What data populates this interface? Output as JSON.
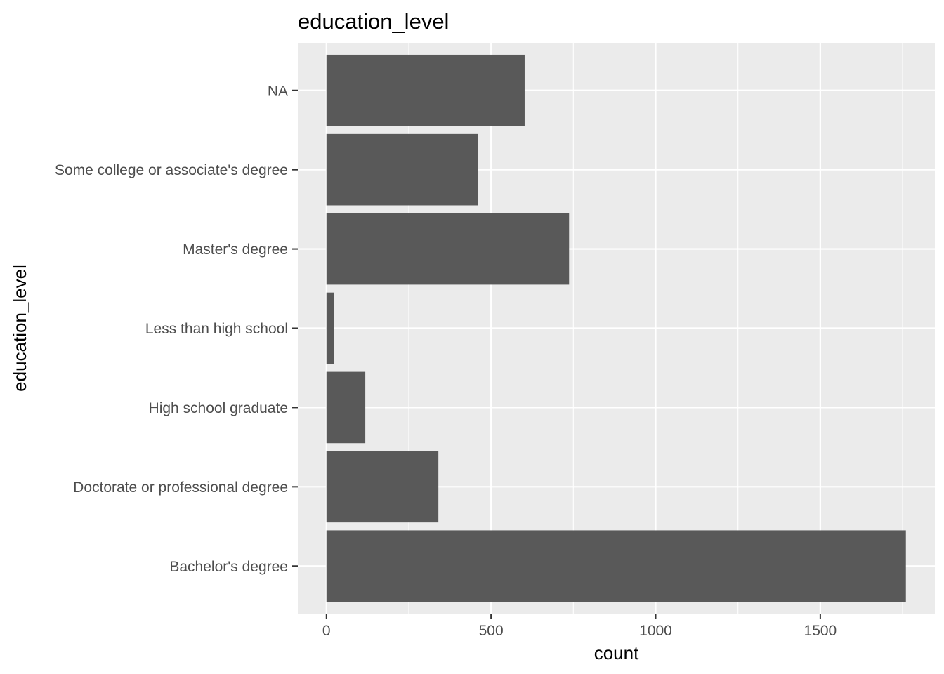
{
  "chart_data": {
    "type": "bar",
    "orientation": "horizontal",
    "title": "education_level",
    "xlabel": "count",
    "ylabel": "education_level",
    "categories": [
      "Bachelor's degree",
      "Doctorate or professional degree",
      "High school graduate",
      "Less than high school",
      "Master's degree",
      "Some college or associate's degree",
      "NA"
    ],
    "values": [
      1760,
      340,
      118,
      22,
      737,
      460,
      602
    ],
    "xlim": [
      -87,
      1848
    ],
    "xticks": [
      0,
      500,
      1000,
      1500
    ],
    "xtick_labels": [
      "0",
      "500",
      "1000",
      "1500"
    ],
    "grid": true,
    "colors": {
      "bar": "#595959",
      "panel": "#ebebeb",
      "grid": "#ffffff",
      "tick_text": "#4d4d4d"
    }
  }
}
